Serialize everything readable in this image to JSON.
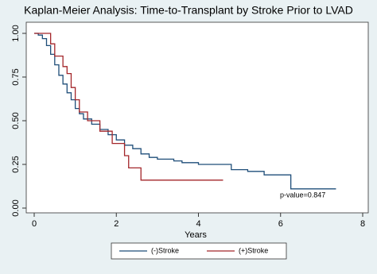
{
  "chart_data": {
    "type": "step",
    "title": "Kaplan-Meier Analysis: Time-to-Transplant by Stroke Prior to LVAD",
    "x_label": "Years",
    "annotation": "p-value=0.847",
    "xlim": [
      0,
      8
    ],
    "xticks": [
      0,
      2,
      4,
      6,
      8
    ],
    "ylim": [
      0,
      1
    ],
    "yticks": [
      {
        "value": 0,
        "label": "0.00"
      },
      {
        "value": 0.25,
        "label": "0.25"
      },
      {
        "value": 0.5,
        "label": "0.50"
      },
      {
        "value": 0.75,
        "label": "0.75"
      },
      {
        "value": 1,
        "label": "1.00"
      }
    ],
    "series": [
      {
        "name": "(-)Stroke",
        "color": "#1f4e79",
        "x": [
          0,
          0.1,
          0.2,
          0.3,
          0.4,
          0.5,
          0.6,
          0.7,
          0.8,
          0.9,
          1.0,
          1.1,
          1.2,
          1.4,
          1.6,
          1.8,
          2.0,
          2.2,
          2.4,
          2.6,
          2.8,
          3.0,
          3.4,
          3.6,
          4.0,
          4.8,
          5.2,
          5.6,
          6.25,
          7.35
        ],
        "values": [
          1,
          0.99,
          0.97,
          0.93,
          0.88,
          0.82,
          0.76,
          0.71,
          0.66,
          0.62,
          0.57,
          0.54,
          0.51,
          0.48,
          0.45,
          0.42,
          0.39,
          0.36,
          0.34,
          0.31,
          0.29,
          0.28,
          0.27,
          0.26,
          0.25,
          0.22,
          0.21,
          0.19,
          0.11,
          0.11
        ]
      },
      {
        "name": "(+)Stroke",
        "color": "#a3262a",
        "x": [
          0,
          0.4,
          0.5,
          0.7,
          0.8,
          0.9,
          1.0,
          1.1,
          1.3,
          1.6,
          1.9,
          2.2,
          2.3,
          2.6,
          4.6
        ],
        "values": [
          1,
          0.94,
          0.87,
          0.81,
          0.77,
          0.69,
          0.62,
          0.55,
          0.5,
          0.44,
          0.37,
          0.3,
          0.23,
          0.16,
          0.16
        ]
      }
    ]
  }
}
